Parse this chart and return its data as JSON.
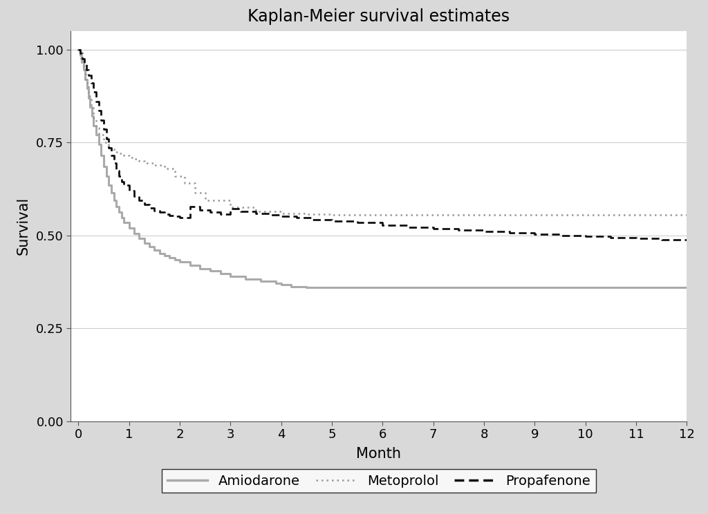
{
  "title": "Kaplan-Meier survival estimates",
  "xlabel": "Month",
  "ylabel": "Survival",
  "xlim": [
    -0.15,
    12
  ],
  "ylim": [
    0.0,
    1.05
  ],
  "yticks": [
    0.0,
    0.25,
    0.5,
    0.75,
    1.0
  ],
  "xticks": [
    0,
    1,
    2,
    3,
    4,
    5,
    6,
    7,
    8,
    9,
    10,
    11,
    12
  ],
  "background_color": "#d9d9d9",
  "plot_bg_color": "#ffffff",
  "amiodarone_color": "#aaaaaa",
  "metoprolol_color": "#999999",
  "propafenone_color": "#111111",
  "amiodarone_x": [
    0,
    0.03,
    0.06,
    0.1,
    0.13,
    0.17,
    0.2,
    0.23,
    0.27,
    0.3,
    0.35,
    0.4,
    0.45,
    0.5,
    0.55,
    0.6,
    0.65,
    0.7,
    0.75,
    0.8,
    0.85,
    0.9,
    1.0,
    1.1,
    1.2,
    1.3,
    1.4,
    1.5,
    1.6,
    1.7,
    1.8,
    1.9,
    2.0,
    2.2,
    2.4,
    2.6,
    2.8,
    3.0,
    3.3,
    3.6,
    3.9,
    4.0,
    4.2,
    4.5,
    5.0,
    5.5,
    6.0,
    7.0,
    8.0,
    9.0,
    10.0,
    11.0,
    12.0
  ],
  "amiodarone_y": [
    1.0,
    0.985,
    0.965,
    0.945,
    0.92,
    0.895,
    0.87,
    0.845,
    0.82,
    0.795,
    0.77,
    0.745,
    0.715,
    0.685,
    0.66,
    0.635,
    0.615,
    0.595,
    0.578,
    0.562,
    0.548,
    0.535,
    0.52,
    0.505,
    0.493,
    0.48,
    0.47,
    0.46,
    0.452,
    0.445,
    0.44,
    0.435,
    0.43,
    0.42,
    0.41,
    0.405,
    0.398,
    0.39,
    0.383,
    0.378,
    0.372,
    0.368,
    0.363,
    0.36,
    0.36,
    0.36,
    0.36,
    0.36,
    0.36,
    0.36,
    0.36,
    0.36,
    0.36
  ],
  "metoprolol_x": [
    0,
    0.05,
    0.1,
    0.15,
    0.2,
    0.25,
    0.3,
    0.35,
    0.4,
    0.5,
    0.6,
    0.7,
    0.8,
    0.9,
    1.0,
    1.1,
    1.2,
    1.3,
    1.5,
    1.7,
    1.9,
    2.1,
    2.3,
    2.5,
    3.0,
    3.5,
    4.0,
    4.5,
    5.0,
    5.5,
    6.0,
    6.5,
    7.0,
    8.0,
    9.0,
    10.0,
    11.0,
    12.0
  ],
  "metoprolol_y": [
    1.0,
    0.975,
    0.945,
    0.91,
    0.875,
    0.845,
    0.815,
    0.79,
    0.77,
    0.75,
    0.735,
    0.725,
    0.72,
    0.715,
    0.71,
    0.705,
    0.7,
    0.695,
    0.69,
    0.68,
    0.66,
    0.64,
    0.615,
    0.595,
    0.575,
    0.565,
    0.56,
    0.558,
    0.556,
    0.556,
    0.556,
    0.556,
    0.556,
    0.556,
    0.556,
    0.556,
    0.556,
    0.556
  ],
  "propafenone_x": [
    0,
    0.04,
    0.08,
    0.12,
    0.16,
    0.2,
    0.25,
    0.3,
    0.35,
    0.4,
    0.45,
    0.5,
    0.55,
    0.6,
    0.65,
    0.7,
    0.75,
    0.8,
    0.85,
    0.9,
    1.0,
    1.1,
    1.2,
    1.3,
    1.4,
    1.5,
    1.6,
    1.7,
    1.8,
    1.9,
    2.0,
    2.2,
    2.4,
    2.6,
    2.8,
    3.0,
    3.2,
    3.5,
    3.8,
    4.0,
    4.3,
    4.6,
    5.0,
    5.5,
    6.0,
    6.5,
    7.0,
    7.5,
    8.0,
    8.5,
    9.0,
    9.5,
    10.0,
    10.5,
    11.0,
    11.5,
    12.0
  ],
  "propafenone_y": [
    1.0,
    0.99,
    0.975,
    0.96,
    0.945,
    0.93,
    0.91,
    0.885,
    0.86,
    0.835,
    0.81,
    0.785,
    0.76,
    0.735,
    0.715,
    0.695,
    0.675,
    0.66,
    0.645,
    0.635,
    0.62,
    0.605,
    0.594,
    0.583,
    0.574,
    0.567,
    0.562,
    0.557,
    0.554,
    0.551,
    0.548,
    0.578,
    0.568,
    0.562,
    0.558,
    0.572,
    0.565,
    0.56,
    0.555,
    0.552,
    0.548,
    0.543,
    0.538,
    0.535,
    0.528,
    0.522,
    0.518,
    0.515,
    0.511,
    0.507,
    0.503,
    0.499,
    0.498,
    0.495,
    0.492,
    0.489,
    0.487
  ]
}
